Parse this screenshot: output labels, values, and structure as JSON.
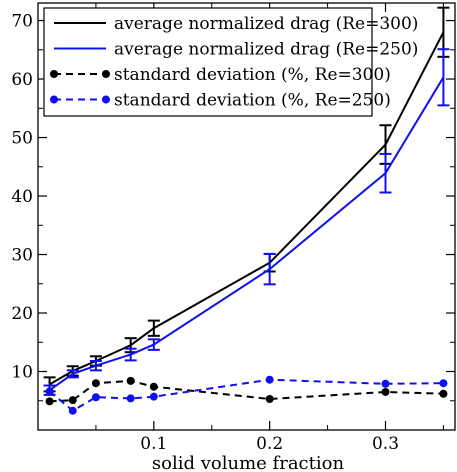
{
  "chart_data": {
    "type": "line",
    "title": "",
    "xlabel": "solid volume fraction",
    "ylabel": "",
    "xlim": [
      0.0,
      0.36
    ],
    "ylim": [
      0,
      73
    ],
    "x_ticks": [
      0.1,
      0.2,
      0.3
    ],
    "x_tick_labels": [
      "0.1",
      "0.2",
      "0.3"
    ],
    "y_ticks": [
      10,
      20,
      30,
      40,
      50,
      60,
      70
    ],
    "y_tick_labels": [
      "10",
      "20",
      "30",
      "40",
      "50",
      "60",
      "70"
    ],
    "grid": false,
    "legend_position": "top-left",
    "x": [
      0.01,
      0.03,
      0.05,
      0.08,
      0.1,
      0.2,
      0.3,
      0.35
    ],
    "series": [
      {
        "name": "average normalized drag (Re=300)",
        "color": "#000000",
        "style": "solid",
        "markers": false,
        "values": [
          7.8,
          10.1,
          11.8,
          14.5,
          17.4,
          28.6,
          48.8,
          68.0
        ],
        "errors": [
          1.2,
          0.8,
          0.8,
          1.2,
          1.3,
          1.5,
          3.3,
          4.2
        ]
      },
      {
        "name": "average normalized drag (Re=250)",
        "color": "#1010ee",
        "style": "solid",
        "markers": false,
        "values": [
          6.8,
          9.6,
          11.0,
          12.9,
          14.6,
          27.5,
          43.9,
          60.3
        ],
        "errors": [
          0.8,
          0.6,
          0.8,
          1.0,
          0.9,
          2.6,
          3.3,
          4.8
        ]
      },
      {
        "name": "standard deviation (%, Re=300)",
        "color": "#000000",
        "style": "dashed",
        "markers": true,
        "values": [
          4.9,
          5.1,
          8.0,
          8.4,
          7.4,
          5.3,
          6.5,
          6.2
        ]
      },
      {
        "name": "standard deviation (%, Re=250)",
        "color": "#1010ee",
        "style": "dashed",
        "markers": true,
        "values": [
          6.6,
          3.3,
          5.6,
          5.4,
          5.7,
          8.6,
          7.9,
          8.0
        ]
      }
    ]
  }
}
